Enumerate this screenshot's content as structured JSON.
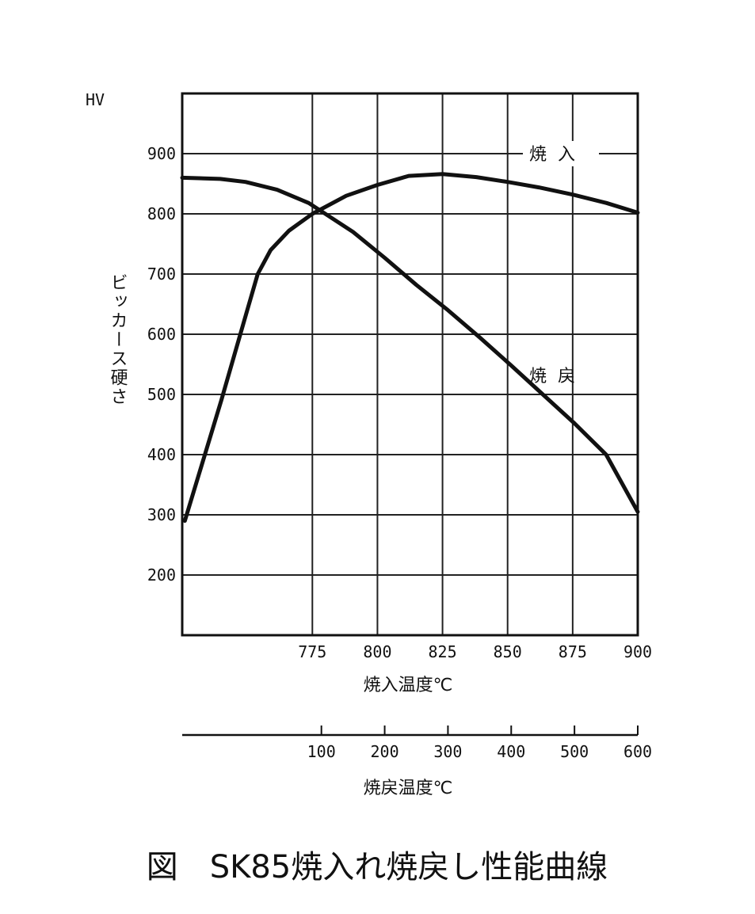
{
  "chart_data": {
    "type": "line",
    "caption": "図　SK85焼入れ焼戻し性能曲線",
    "y_unit": "HV",
    "ylabel": "ビッカース硬さ",
    "xlabel": "焼入温度℃",
    "x2label": "焼戻温度℃",
    "ylim": [
      100,
      1000
    ],
    "xlim": [
      725,
      900
    ],
    "x2lim": [
      -120,
      600
    ],
    "yticks": [
      "200",
      "300",
      "400",
      "500",
      "600",
      "700",
      "800",
      "900"
    ],
    "xticks": [
      "775",
      "800",
      "825",
      "850",
      "875",
      "900"
    ],
    "x2ticks": [
      "100",
      "200",
      "300",
      "400",
      "500",
      "600"
    ],
    "grid": true,
    "series": [
      {
        "name": "焼入",
        "axis": "quench",
        "points": [
          [
            726,
            290
          ],
          [
            740,
            490
          ],
          [
            750,
            640
          ],
          [
            754,
            700
          ],
          [
            759,
            740
          ],
          [
            766,
            772
          ],
          [
            775,
            800
          ],
          [
            788,
            830
          ],
          [
            800,
            848
          ],
          [
            812,
            863
          ],
          [
            825,
            866
          ],
          [
            838,
            861
          ],
          [
            850,
            853
          ],
          [
            862,
            844
          ],
          [
            875,
            832
          ],
          [
            888,
            818
          ],
          [
            900,
            802
          ]
        ]
      },
      {
        "name": "焼戻",
        "axis": "temper",
        "points": [
          [
            -120,
            860
          ],
          [
            -60,
            858
          ],
          [
            -20,
            853
          ],
          [
            30,
            840
          ],
          [
            80,
            818
          ],
          [
            150,
            770
          ],
          [
            200,
            727
          ],
          [
            250,
            682
          ],
          [
            300,
            640
          ],
          [
            350,
            595
          ],
          [
            400,
            548
          ],
          [
            450,
            500
          ],
          [
            500,
            452
          ],
          [
            550,
            400
          ],
          [
            600,
            305
          ]
        ]
      }
    ]
  }
}
